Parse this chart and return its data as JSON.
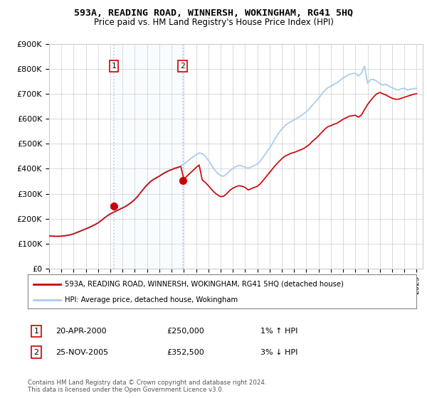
{
  "title": "593A, READING ROAD, WINNERSH, WOKINGHAM, RG41 5HQ",
  "subtitle": "Price paid vs. HM Land Registry's House Price Index (HPI)",
  "bg_color": "#ffffff",
  "plot_bg_color": "#ffffff",
  "grid_color": "#cccccc",
  "line_color_house": "#cc0000",
  "line_color_hpi": "#aaccee",
  "marker1_x": 2000.3,
  "marker1_y": 250000,
  "marker2_x": 2005.9,
  "marker2_y": 352500,
  "marker_color": "#cc0000",
  "vline_color": "#aaccee",
  "span_color": "#ddeeff",
  "legend_house_label": "593A, READING ROAD, WINNERSH, WOKINGHAM, RG41 5HQ (detached house)",
  "legend_hpi_label": "HPI: Average price, detached house, Wokingham",
  "ann1_label": "1",
  "ann1_date": "20-APR-2000",
  "ann1_price": "£250,000",
  "ann1_hpi": "1% ↑ HPI",
  "ann2_label": "2",
  "ann2_date": "25-NOV-2005",
  "ann2_price": "£352,500",
  "ann2_hpi": "3% ↓ HPI",
  "footer": "Contains HM Land Registry data © Crown copyright and database right 2024.\nThis data is licensed under the Open Government Licence v3.0.",
  "ylim": [
    0,
    900000
  ],
  "yticks": [
    0,
    100000,
    200000,
    300000,
    400000,
    500000,
    600000,
    700000,
    800000,
    900000
  ],
  "ytick_labels": [
    "£0",
    "£100K",
    "£200K",
    "£300K",
    "£400K",
    "£500K",
    "£600K",
    "£700K",
    "£800K",
    "£900K"
  ],
  "xlim": [
    1995,
    2025.5
  ],
  "xticks": [
    1995,
    1996,
    1997,
    1998,
    1999,
    2000,
    2001,
    2002,
    2003,
    2004,
    2005,
    2006,
    2007,
    2008,
    2009,
    2010,
    2011,
    2012,
    2013,
    2014,
    2015,
    2016,
    2017,
    2018,
    2019,
    2020,
    2021,
    2022,
    2023,
    2024,
    2025
  ],
  "hpi_data_x": [
    1995.0,
    1995.25,
    1995.5,
    1995.75,
    1996.0,
    1996.25,
    1996.5,
    1996.75,
    1997.0,
    1997.25,
    1997.5,
    1997.75,
    1998.0,
    1998.25,
    1998.5,
    1998.75,
    1999.0,
    1999.25,
    1999.5,
    1999.75,
    2000.0,
    2000.25,
    2000.5,
    2000.75,
    2001.0,
    2001.25,
    2001.5,
    2001.75,
    2002.0,
    2002.25,
    2002.5,
    2002.75,
    2003.0,
    2003.25,
    2003.5,
    2003.75,
    2004.0,
    2004.25,
    2004.5,
    2004.75,
    2005.0,
    2005.25,
    2005.5,
    2005.75,
    2006.0,
    2006.25,
    2006.5,
    2006.75,
    2007.0,
    2007.25,
    2007.5,
    2007.75,
    2008.0,
    2008.25,
    2008.5,
    2008.75,
    2009.0,
    2009.25,
    2009.5,
    2009.75,
    2010.0,
    2010.25,
    2010.5,
    2010.75,
    2011.0,
    2011.25,
    2011.5,
    2011.75,
    2012.0,
    2012.25,
    2012.5,
    2012.75,
    2013.0,
    2013.25,
    2013.5,
    2013.75,
    2014.0,
    2014.25,
    2014.5,
    2014.75,
    2015.0,
    2015.25,
    2015.5,
    2015.75,
    2016.0,
    2016.25,
    2016.5,
    2016.75,
    2017.0,
    2017.25,
    2017.5,
    2017.75,
    2018.0,
    2018.25,
    2018.5,
    2018.75,
    2019.0,
    2019.25,
    2019.5,
    2019.75,
    2020.0,
    2020.25,
    2020.5,
    2020.75,
    2021.0,
    2021.25,
    2021.5,
    2021.75,
    2022.0,
    2022.25,
    2022.5,
    2022.75,
    2023.0,
    2023.25,
    2023.5,
    2023.75,
    2024.0,
    2024.25,
    2024.5,
    2024.75,
    2025.0
  ],
  "hpi_data_y": [
    133000,
    132000,
    131500,
    131000,
    132000,
    133000,
    135000,
    137000,
    141000,
    146000,
    151000,
    156000,
    161000,
    166000,
    172000,
    178000,
    185000,
    194000,
    204000,
    213000,
    221000,
    227000,
    233000,
    239000,
    245000,
    251000,
    259000,
    268000,
    279000,
    292000,
    308000,
    323000,
    337000,
    349000,
    358000,
    365000,
    372000,
    380000,
    387000,
    393000,
    398000,
    403000,
    407000,
    411000,
    418000,
    428000,
    438000,
    447000,
    456000,
    463000,
    461000,
    450000,
    433000,
    415000,
    396000,
    382000,
    372000,
    370000,
    379000,
    392000,
    401000,
    409000,
    413000,
    411000,
    406000,
    402000,
    407000,
    413000,
    419000,
    431000,
    448000,
    466000,
    483000,
    502000,
    525000,
    543000,
    559000,
    572000,
    581000,
    589000,
    595000,
    603000,
    610000,
    619000,
    628000,
    640000,
    655000,
    668000,
    682000,
    698000,
    713000,
    724000,
    730000,
    738000,
    744000,
    754000,
    763000,
    771000,
    778000,
    780000,
    782000,
    771000,
    783000,
    810000,
    742000,
    757000,
    757000,
    750000,
    740000,
    735000,
    738000,
    730000,
    725000,
    718000,
    715000,
    720000,
    722000,
    715000,
    718000,
    720000,
    722000
  ],
  "house_data_x": [
    1995.0,
    1995.25,
    1995.5,
    1995.75,
    1996.0,
    1996.25,
    1996.5,
    1996.75,
    1997.0,
    1997.25,
    1997.5,
    1997.75,
    1998.0,
    1998.25,
    1998.5,
    1998.75,
    1999.0,
    1999.25,
    1999.5,
    1999.75,
    2000.0,
    2000.25,
    2000.5,
    2000.75,
    2001.0,
    2001.25,
    2001.5,
    2001.75,
    2002.0,
    2002.25,
    2002.5,
    2002.75,
    2003.0,
    2003.25,
    2003.5,
    2003.75,
    2004.0,
    2004.25,
    2004.5,
    2004.75,
    2005.0,
    2005.25,
    2005.5,
    2005.75,
    2006.0,
    2006.25,
    2006.5,
    2006.75,
    2007.0,
    2007.25,
    2007.5,
    2007.75,
    2008.0,
    2008.25,
    2008.5,
    2008.75,
    2009.0,
    2009.25,
    2009.5,
    2009.75,
    2010.0,
    2010.25,
    2010.5,
    2010.75,
    2011.0,
    2011.25,
    2011.5,
    2011.75,
    2012.0,
    2012.25,
    2012.5,
    2012.75,
    2013.0,
    2013.25,
    2013.5,
    2013.75,
    2014.0,
    2014.25,
    2014.5,
    2014.75,
    2015.0,
    2015.25,
    2015.5,
    2015.75,
    2016.0,
    2016.25,
    2016.5,
    2016.75,
    2017.0,
    2017.25,
    2017.5,
    2017.75,
    2018.0,
    2018.25,
    2018.5,
    2018.75,
    2019.0,
    2019.25,
    2019.5,
    2019.75,
    2020.0,
    2020.25,
    2020.5,
    2020.75,
    2021.0,
    2021.25,
    2021.5,
    2021.75,
    2022.0,
    2022.25,
    2022.5,
    2022.75,
    2023.0,
    2023.25,
    2023.5,
    2023.75,
    2024.0,
    2024.25,
    2024.5,
    2024.75,
    2025.0
  ],
  "house_data_y": [
    131000,
    130000,
    129500,
    129000,
    130000,
    131000,
    133000,
    135500,
    139000,
    144000,
    149000,
    154000,
    159000,
    164000,
    170000,
    176000,
    183000,
    192000,
    202000,
    211000,
    219000,
    225000,
    231000,
    237000,
    243000,
    249000,
    257000,
    266000,
    277000,
    290000,
    306000,
    321000,
    335000,
    347000,
    356000,
    363000,
    370000,
    378000,
    385000,
    391000,
    396000,
    401000,
    405000,
    409000,
    358000,
    370000,
    382000,
    393000,
    405000,
    415000,
    355000,
    345000,
    332000,
    318000,
    305000,
    295000,
    288000,
    290000,
    300000,
    313000,
    322000,
    328000,
    332000,
    330000,
    325000,
    315000,
    320000,
    325000,
    330000,
    340000,
    355000,
    370000,
    385000,
    400000,
    415000,
    428000,
    440000,
    450000,
    456000,
    462000,
    465000,
    470000,
    475000,
    480000,
    488000,
    497000,
    510000,
    520000,
    532000,
    545000,
    558000,
    568000,
    572000,
    578000,
    582000,
    590000,
    598000,
    604000,
    610000,
    612000,
    614000,
    606000,
    615000,
    637000,
    657000,
    673000,
    688000,
    700000,
    705000,
    700000,
    695000,
    688000,
    682000,
    678000,
    678000,
    682000,
    686000,
    690000,
    694000,
    698000,
    700000
  ]
}
